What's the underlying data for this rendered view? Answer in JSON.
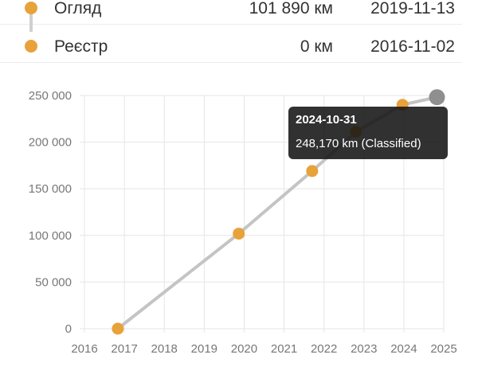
{
  "history": [
    {
      "label": "Огляд",
      "km": "101 890 км",
      "date": "2019-11-13"
    },
    {
      "label": "Реєстр",
      "km": "0 км",
      "date": "2016-11-02"
    }
  ],
  "chart_data": {
    "type": "line",
    "x_ticks": [
      "2016",
      "2017",
      "2018",
      "2019",
      "2020",
      "2021",
      "2022",
      "2023",
      "2024",
      "2025"
    ],
    "y_ticks": [
      "0",
      "50 000",
      "100 000",
      "150 000",
      "200 000",
      "250 000"
    ],
    "xlim": [
      2016,
      2025
    ],
    "ylim": [
      0,
      250000
    ],
    "grid": true,
    "points": [
      {
        "x": "2016-11-02",
        "y": 0
      },
      {
        "x": "2019-11-13",
        "y": 101890
      },
      {
        "x": "2021-09-15",
        "y": 169000
      },
      {
        "x": "2022-10-20",
        "y": 211000
      },
      {
        "x": "2023-12-20",
        "y": 240000
      },
      {
        "x": "2024-10-31",
        "y": 248170
      }
    ],
    "highlighted_index": 5
  },
  "tooltip": {
    "date": "2024-10-31",
    "value": "248,170 km (Classified)"
  },
  "colors": {
    "marker": "#e8a23a",
    "line": "#c4c4c4",
    "highlight": "#8f8f8f",
    "grid": "#e6e6e6"
  }
}
